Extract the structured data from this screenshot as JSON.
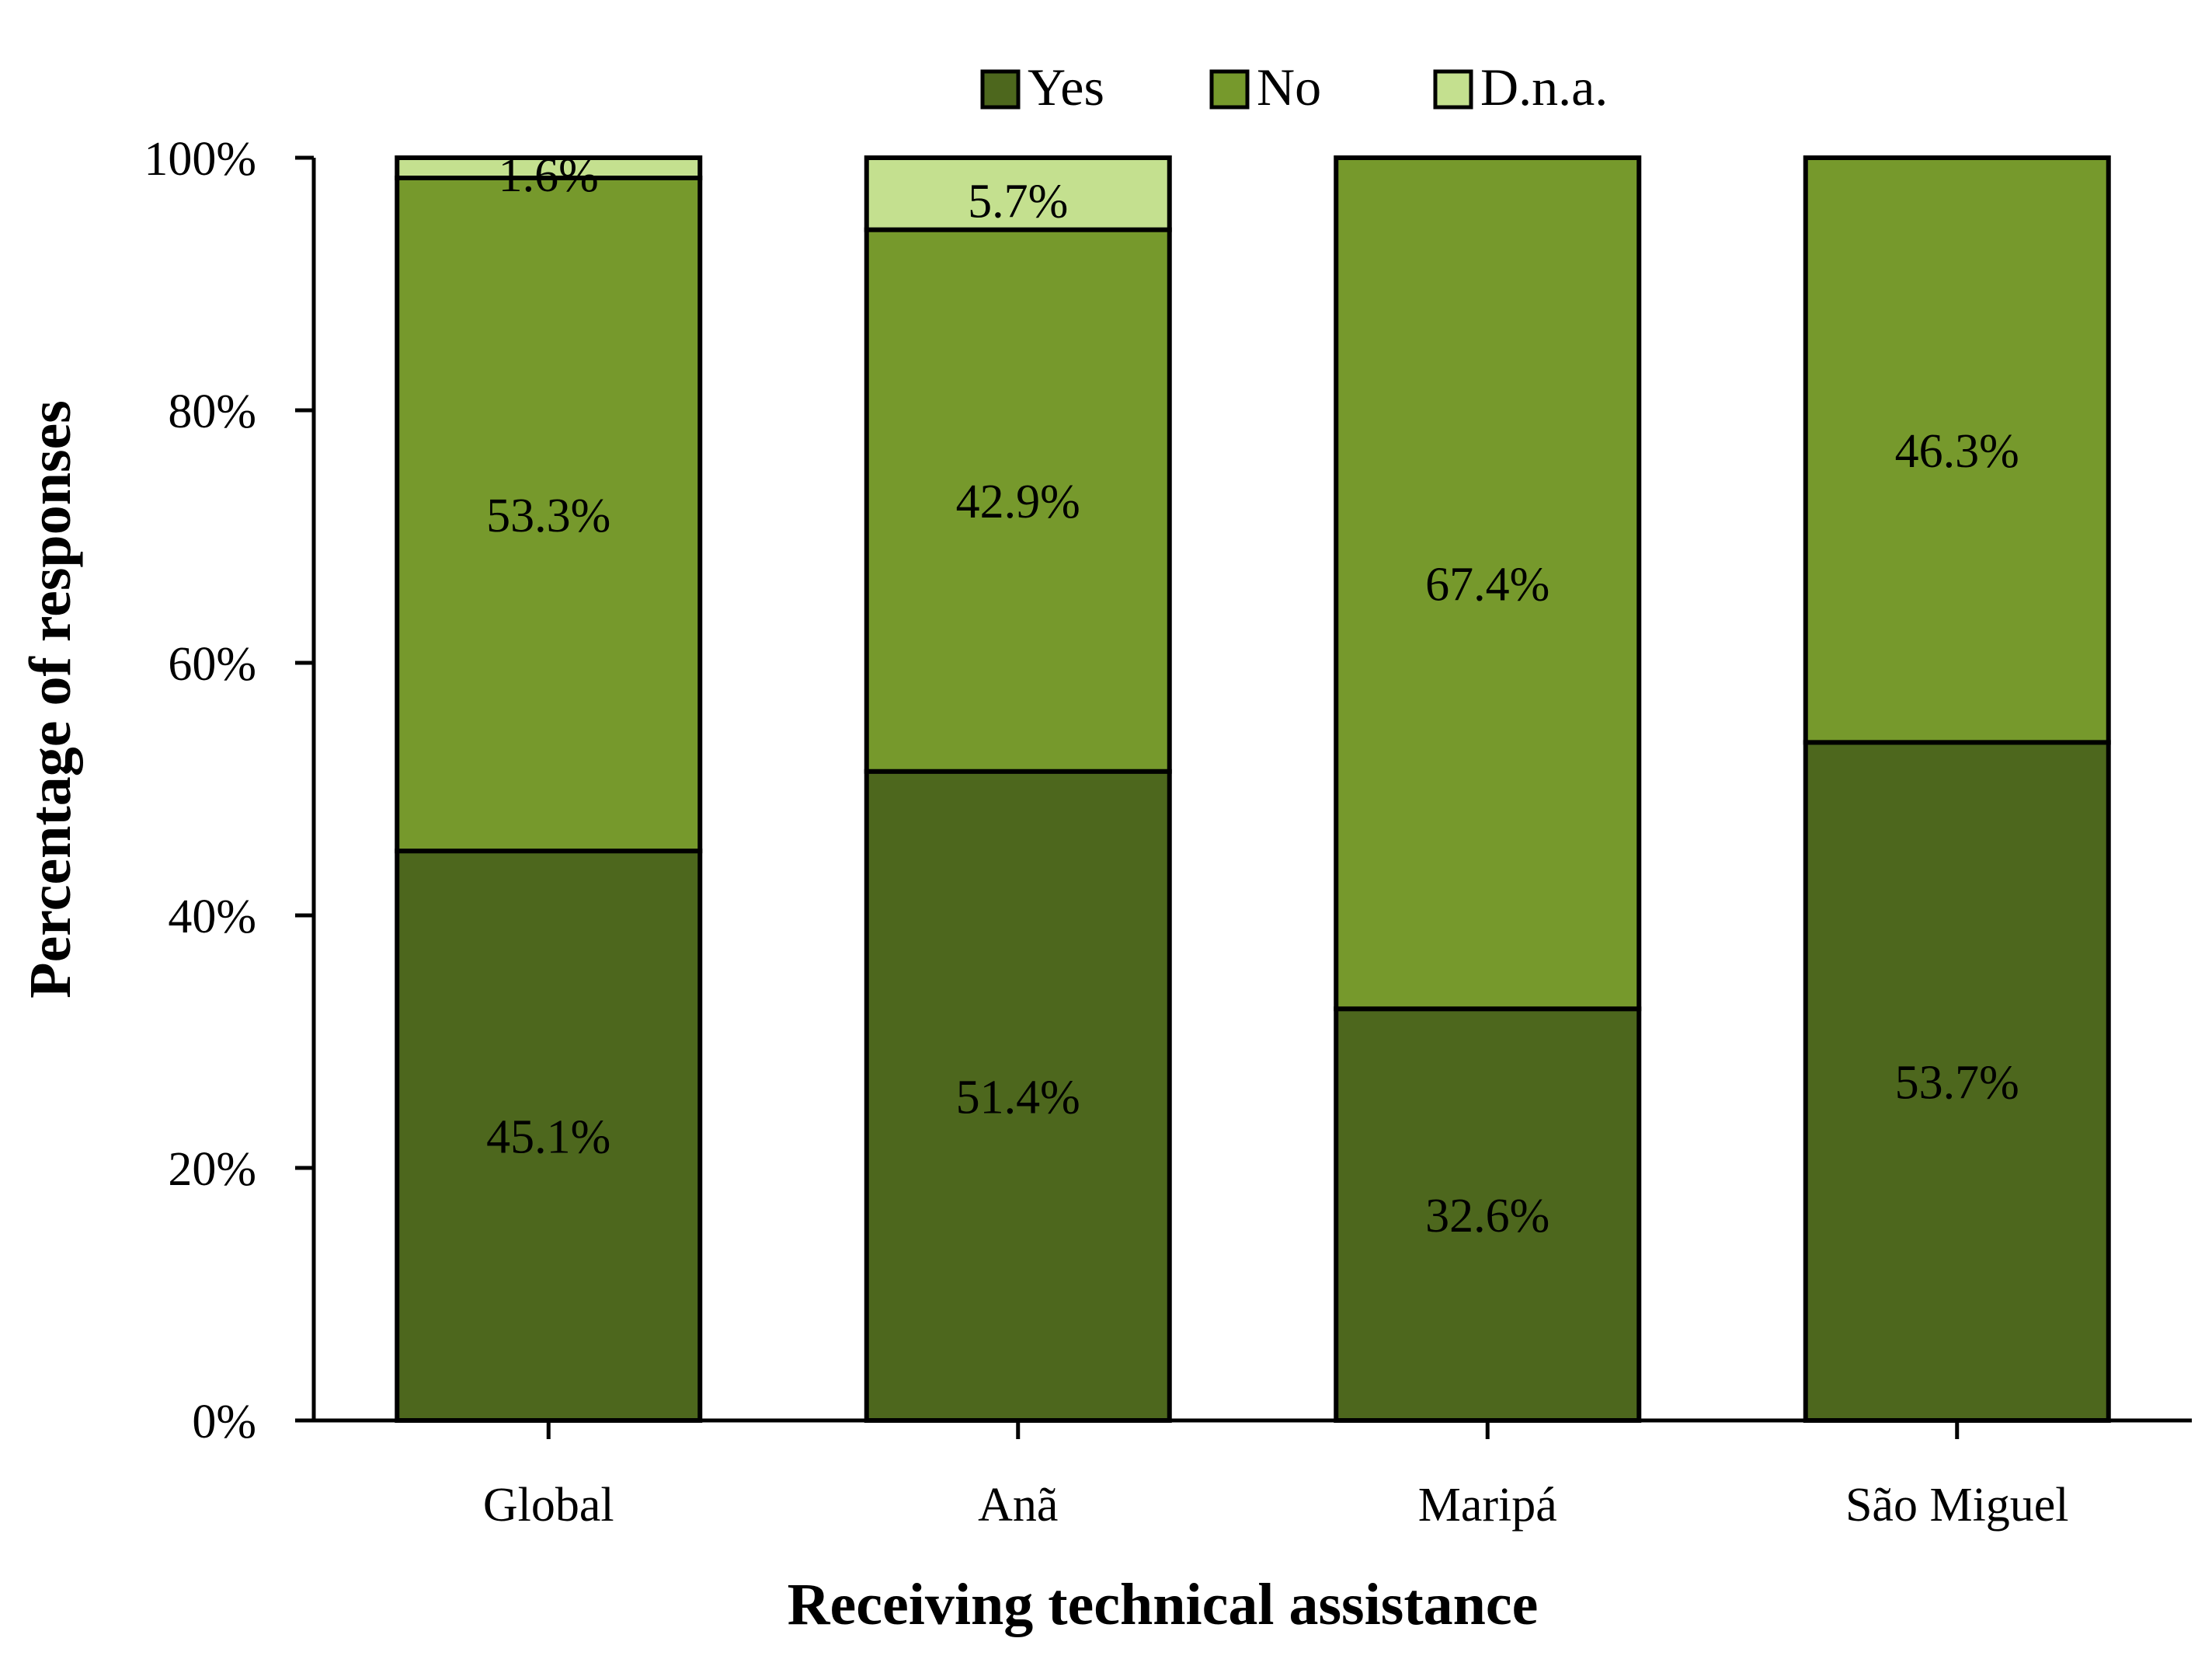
{
  "chart_data": {
    "type": "bar",
    "stacked": true,
    "title": "",
    "xlabel": "Receiving technical assistance",
    "ylabel": "Percentage of responses",
    "categories": [
      "Global",
      "Anã",
      "Maripá",
      "São Miguel"
    ],
    "ylim": [
      0,
      100
    ],
    "yticks": [
      0,
      20,
      40,
      60,
      80,
      100
    ],
    "ytick_labels": [
      "0%",
      "20%",
      "40%",
      "60%",
      "80%",
      "100%"
    ],
    "grid": false,
    "legend_position": "top-center",
    "series": [
      {
        "name": "Yes",
        "color": "#4d671d",
        "values": [
          45.1,
          51.4,
          32.6,
          53.7
        ],
        "labels": [
          "45.1%",
          "51.4%",
          "32.6%",
          "53.7%"
        ]
      },
      {
        "name": "No",
        "color": "#76992c",
        "values": [
          53.3,
          42.9,
          67.4,
          46.3
        ],
        "labels": [
          "53.3%",
          "42.9%",
          "67.4%",
          "46.3%"
        ]
      },
      {
        "name": "D.n.a.",
        "color": "#c4e08f",
        "values": [
          1.6,
          5.7,
          0,
          0
        ],
        "labels": [
          "1.6%",
          "5.7%",
          "",
          ""
        ]
      }
    ]
  }
}
